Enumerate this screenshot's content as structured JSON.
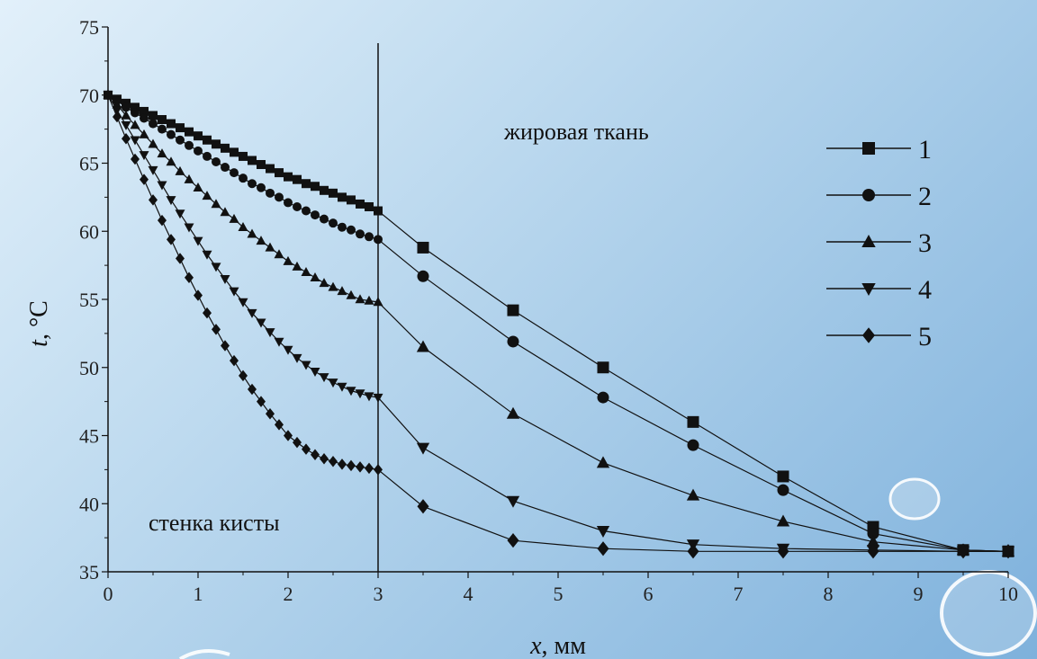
{
  "chart_data": {
    "type": "line",
    "xlabel_var": "x",
    "xlabel_unit": ", мм",
    "ylabel_var": "t",
    "ylabel_unit": ", °C",
    "xlim": [
      0,
      10
    ],
    "ylim": [
      35,
      75
    ],
    "xticks": [
      0,
      1,
      2,
      3,
      4,
      5,
      6,
      7,
      8,
      9,
      10
    ],
    "yticks": [
      35,
      40,
      45,
      50,
      55,
      60,
      65,
      70,
      75
    ],
    "boundary_x": 3,
    "regions": {
      "left": "стенка кисты",
      "right": "жировая ткань"
    },
    "legend_position": "upper-right",
    "series": [
      {
        "name": "1",
        "marker": "square",
        "x": [
          0,
          0.1,
          0.2,
          0.3,
          0.4,
          0.5,
          0.6,
          0.7,
          0.8,
          0.9,
          1.0,
          1.1,
          1.2,
          1.3,
          1.4,
          1.5,
          1.6,
          1.7,
          1.8,
          1.9,
          2.0,
          2.1,
          2.2,
          2.3,
          2.4,
          2.5,
          2.6,
          2.7,
          2.8,
          2.9,
          3.0,
          3.5,
          4.5,
          5.5,
          6.5,
          7.5,
          8.5,
          9.5,
          10
        ],
        "y": [
          70,
          69.7,
          69.4,
          69.1,
          68.8,
          68.5,
          68.2,
          67.9,
          67.6,
          67.3,
          67.0,
          66.7,
          66.4,
          66.1,
          65.8,
          65.5,
          65.2,
          64.9,
          64.6,
          64.3,
          64.0,
          63.8,
          63.5,
          63.3,
          63.0,
          62.8,
          62.5,
          62.3,
          62.0,
          61.8,
          61.5,
          58.8,
          54.2,
          50.0,
          46.0,
          42.0,
          38.3,
          36.6,
          36.5
        ]
      },
      {
        "name": "2",
        "marker": "circle",
        "x": [
          0,
          0.1,
          0.2,
          0.3,
          0.4,
          0.5,
          0.6,
          0.7,
          0.8,
          0.9,
          1.0,
          1.1,
          1.2,
          1.3,
          1.4,
          1.5,
          1.6,
          1.7,
          1.8,
          1.9,
          2.0,
          2.1,
          2.2,
          2.3,
          2.4,
          2.5,
          2.6,
          2.7,
          2.8,
          2.9,
          3.0,
          3.5,
          4.5,
          5.5,
          6.5,
          7.5,
          8.5,
          9.5,
          10
        ],
        "y": [
          70,
          69.6,
          69.1,
          68.7,
          68.3,
          67.9,
          67.5,
          67.1,
          66.7,
          66.3,
          65.9,
          65.5,
          65.1,
          64.7,
          64.3,
          63.9,
          63.5,
          63.2,
          62.8,
          62.5,
          62.1,
          61.8,
          61.5,
          61.2,
          60.9,
          60.6,
          60.3,
          60.1,
          59.8,
          59.6,
          59.4,
          56.7,
          51.9,
          47.8,
          44.3,
          41.0,
          37.8,
          36.6,
          36.5
        ]
      },
      {
        "name": "3",
        "marker": "triangle-up",
        "x": [
          0,
          0.1,
          0.2,
          0.3,
          0.4,
          0.5,
          0.6,
          0.7,
          0.8,
          0.9,
          1.0,
          1.1,
          1.2,
          1.3,
          1.4,
          1.5,
          1.6,
          1.7,
          1.8,
          1.9,
          2.0,
          2.1,
          2.2,
          2.3,
          2.4,
          2.5,
          2.6,
          2.7,
          2.8,
          2.9,
          3.0,
          3.5,
          4.5,
          5.5,
          6.5,
          7.5,
          8.5,
          9.5,
          10
        ],
        "y": [
          70,
          69.3,
          68.5,
          67.8,
          67.1,
          66.4,
          65.7,
          65.1,
          64.4,
          63.8,
          63.2,
          62.6,
          62.0,
          61.4,
          60.9,
          60.3,
          59.8,
          59.3,
          58.8,
          58.3,
          57.8,
          57.4,
          57.0,
          56.6,
          56.2,
          55.9,
          55.6,
          55.3,
          55.0,
          54.9,
          54.8,
          51.5,
          46.6,
          43.0,
          40.6,
          38.7,
          37.2,
          36.6,
          36.5
        ]
      },
      {
        "name": "4",
        "marker": "triangle-down",
        "x": [
          0,
          0.1,
          0.2,
          0.3,
          0.4,
          0.5,
          0.6,
          0.7,
          0.8,
          0.9,
          1.0,
          1.1,
          1.2,
          1.3,
          1.4,
          1.5,
          1.6,
          1.7,
          1.8,
          1.9,
          2.0,
          2.1,
          2.2,
          2.3,
          2.4,
          2.5,
          2.6,
          2.7,
          2.8,
          2.9,
          3.0,
          3.5,
          4.5,
          5.5,
          6.5,
          7.5,
          8.5,
          9.5,
          10
        ],
        "y": [
          70,
          68.9,
          67.8,
          66.7,
          65.6,
          64.5,
          63.4,
          62.3,
          61.3,
          60.3,
          59.3,
          58.3,
          57.4,
          56.5,
          55.6,
          54.8,
          54.0,
          53.3,
          52.6,
          51.9,
          51.3,
          50.7,
          50.2,
          49.7,
          49.3,
          48.9,
          48.6,
          48.3,
          48.1,
          47.9,
          47.8,
          44.1,
          40.2,
          38.0,
          37.0,
          36.7,
          36.6,
          36.5,
          36.5
        ]
      },
      {
        "name": "5",
        "marker": "diamond",
        "x": [
          0,
          0.1,
          0.2,
          0.3,
          0.4,
          0.5,
          0.6,
          0.7,
          0.8,
          0.9,
          1.0,
          1.1,
          1.2,
          1.3,
          1.4,
          1.5,
          1.6,
          1.7,
          1.8,
          1.9,
          2.0,
          2.1,
          2.2,
          2.3,
          2.4,
          2.5,
          2.6,
          2.7,
          2.8,
          2.9,
          3.0,
          3.5,
          4.5,
          5.5,
          6.5,
          7.5,
          8.5,
          9.5,
          10
        ],
        "y": [
          70,
          68.4,
          66.8,
          65.3,
          63.8,
          62.3,
          60.8,
          59.4,
          58.0,
          56.6,
          55.3,
          54.0,
          52.8,
          51.6,
          50.5,
          49.4,
          48.4,
          47.5,
          46.6,
          45.8,
          45.0,
          44.5,
          44.0,
          43.6,
          43.3,
          43.1,
          42.9,
          42.8,
          42.7,
          42.6,
          42.5,
          39.8,
          37.3,
          36.7,
          36.5,
          36.5,
          36.5,
          36.5,
          36.5
        ]
      }
    ]
  }
}
